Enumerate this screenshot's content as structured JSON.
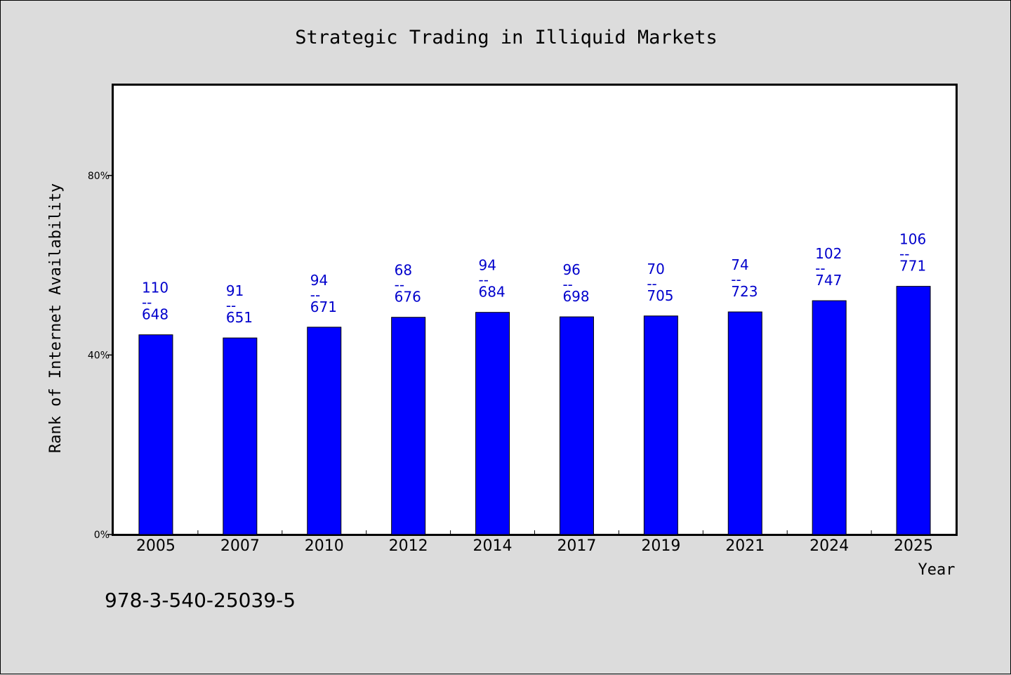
{
  "chart_data": {
    "type": "bar",
    "title": "Strategic Trading in Illiquid Markets",
    "xlabel": "Year",
    "ylabel": "Rank of Internet Availability",
    "categories": [
      "2005",
      "2007",
      "2010",
      "2012",
      "2014",
      "2017",
      "2019",
      "2021",
      "2024",
      "2025"
    ],
    "values": [
      44.5,
      43.8,
      46.2,
      48.4,
      49.5,
      48.5,
      48.7,
      49.6,
      52.1,
      55.3
    ],
    "data_labels": [
      {
        "top": "110",
        "sep": "--",
        "bottom": "648"
      },
      {
        "top": "91",
        "sep": "--",
        "bottom": "651"
      },
      {
        "top": "94",
        "sep": "--",
        "bottom": "671"
      },
      {
        "top": "68",
        "sep": "--",
        "bottom": "676"
      },
      {
        "top": "94",
        "sep": "--",
        "bottom": "684"
      },
      {
        "top": "96",
        "sep": "--",
        "bottom": "698"
      },
      {
        "top": "70",
        "sep": "--",
        "bottom": "705"
      },
      {
        "top": "74",
        "sep": "--",
        "bottom": "723"
      },
      {
        "top": "102",
        "sep": "--",
        "bottom": "747"
      },
      {
        "top": "106",
        "sep": "--",
        "bottom": "771"
      }
    ],
    "yticks": [
      {
        "value": 0,
        "label": "0%"
      },
      {
        "value": 40,
        "label": "40%"
      },
      {
        "value": 80,
        "label": "80%"
      }
    ],
    "ylim": [
      0,
      100
    ],
    "grid": false,
    "bar_color": "#0000ff",
    "label_color": "#0000cc"
  },
  "footer_text": "978-3-540-25039-5"
}
